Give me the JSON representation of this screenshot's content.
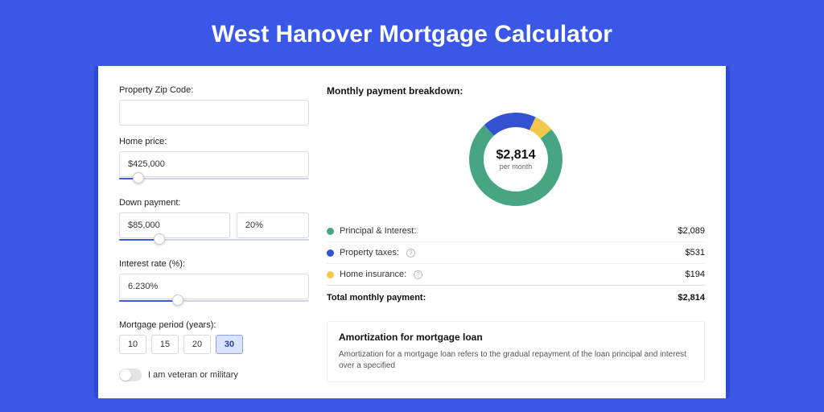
{
  "header": {
    "title": "West Hanover Mortgage Calculator"
  },
  "colors": {
    "page_bg": "#3a57e8",
    "outer_card_bg": "#2c4acc",
    "card_bg": "#ffffff",
    "accent": "#3a57e8",
    "text": "#222222",
    "border": "#d9d9d9"
  },
  "form": {
    "zip": {
      "label": "Property Zip Code:",
      "value": ""
    },
    "home_price": {
      "label": "Home price:",
      "value": "$425,000",
      "slider_pct": 10
    },
    "down_payment": {
      "label": "Down payment:",
      "amount": "$85,000",
      "percent": "20%",
      "slider_pct": 21
    },
    "interest_rate": {
      "label": "Interest rate (%):",
      "value": "6.230%",
      "slider_pct": 31
    },
    "period": {
      "label": "Mortgage period (years):",
      "options": [
        "10",
        "15",
        "20",
        "30"
      ],
      "selected": "30"
    },
    "veteran": {
      "label": "I am veteran or military",
      "checked": false
    }
  },
  "breakdown": {
    "title": "Monthly payment breakdown:",
    "center_amount": "$2,814",
    "center_sub": "per month",
    "donut": {
      "outer_radius": 58,
      "inner_radius": 40,
      "segments": [
        {
          "key": "principal_interest",
          "value": 2089,
          "color": "#47a583"
        },
        {
          "key": "property_taxes",
          "value": 531,
          "color": "#3352d1"
        },
        {
          "key": "home_insurance",
          "value": 194,
          "color": "#f1c84b"
        }
      ],
      "start_angle_deg": -40
    },
    "rows": [
      {
        "label": "Principal & Interest:",
        "value": "$2,089",
        "color": "#47a583",
        "info": false
      },
      {
        "label": "Property taxes:",
        "value": "$531",
        "color": "#3352d1",
        "info": true
      },
      {
        "label": "Home insurance:",
        "value": "$194",
        "color": "#f1c84b",
        "info": true
      }
    ],
    "total": {
      "label": "Total monthly payment:",
      "value": "$2,814"
    }
  },
  "amortization": {
    "title": "Amortization for mortgage loan",
    "text": "Amortization for a mortgage loan refers to the gradual repayment of the loan principal and interest over a specified"
  }
}
